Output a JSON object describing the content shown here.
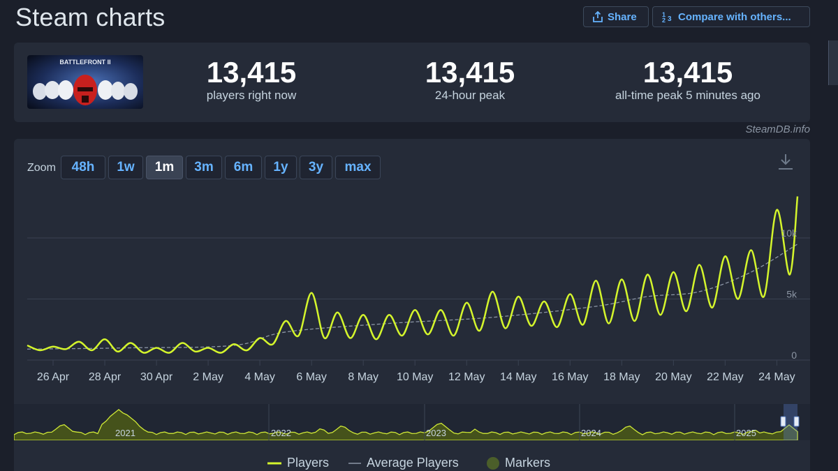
{
  "header": {
    "title": "Steam charts",
    "share_label": "Share",
    "compare_label": "Compare with others..."
  },
  "stats": [
    {
      "value": "13,415",
      "label": "players right now"
    },
    {
      "value": "13,415",
      "label": "24-hour peak"
    },
    {
      "value": "13,415",
      "label": "all-time peak 5 minutes ago"
    }
  ],
  "game": {
    "thumbnail_text": "BATTLEFRONT II"
  },
  "watermark": "SteamDB.info",
  "zoom": {
    "label": "Zoom",
    "options": [
      "48h",
      "1w",
      "1m",
      "3m",
      "6m",
      "1y",
      "3y",
      "max"
    ],
    "active": "1m"
  },
  "colors": {
    "players_line": "#d4f52c",
    "accent_link": "#66b3ff",
    "panel_bg": "#252b38",
    "page_bg": "#1b1f2a"
  },
  "chart_data": {
    "type": "line",
    "x_tick_labels": [
      "26 Apr",
      "28 Apr",
      "30 Apr",
      "2 May",
      "4 May",
      "6 May",
      "8 May",
      "10 May",
      "12 May",
      "14 May",
      "16 May",
      "18 May",
      "20 May",
      "22 May",
      "24 May"
    ],
    "y_tick_labels": [
      "0",
      "5k",
      "10k"
    ],
    "ylim": [
      0,
      14000
    ],
    "grid": true,
    "series": [
      {
        "name": "Players",
        "x_days_from_25apr": [
          0.0,
          0.5,
          1.0,
          1.5,
          2.0,
          2.5,
          3.0,
          3.5,
          4.0,
          4.5,
          5.0,
          5.5,
          6.0,
          6.5,
          7.0,
          7.5,
          8.0,
          8.5,
          9.0,
          9.5,
          10.0,
          10.5,
          11.0,
          11.5,
          12.0,
          12.5,
          13.0,
          13.5,
          14.0,
          14.5,
          15.0,
          15.5,
          16.0,
          16.5,
          17.0,
          17.5,
          18.0,
          18.5,
          19.0,
          19.5,
          20.0,
          20.5,
          21.0,
          21.5,
          22.0,
          22.5,
          23.0,
          23.5,
          24.0,
          24.5,
          25.0,
          25.5,
          26.0,
          26.5,
          27.0,
          27.5,
          28.0,
          28.5,
          29.0,
          29.5,
          29.8
        ],
        "values": [
          1200,
          800,
          1100,
          900,
          1500,
          800,
          1700,
          700,
          1400,
          600,
          1000,
          600,
          1400,
          700,
          1000,
          600,
          1300,
          800,
          1800,
          1300,
          3200,
          2000,
          5500,
          1800,
          3900,
          1800,
          3700,
          1700,
          3700,
          2000,
          4100,
          2100,
          4100,
          2000,
          4700,
          2400,
          5600,
          2600,
          5200,
          2800,
          4800,
          2700,
          5400,
          2900,
          6500,
          3000,
          6600,
          3200,
          7000,
          3700,
          7200,
          4000,
          7800,
          4300,
          8500,
          5000,
          9000,
          5200,
          12300,
          7000,
          13400
        ]
      },
      {
        "name": "Average Players",
        "x_days_from_25apr": [
          0,
          4,
          8,
          10,
          14,
          18,
          22,
          24,
          26,
          28,
          29.8
        ],
        "values": [
          900,
          1000,
          1200,
          2300,
          3000,
          3500,
          4400,
          5200,
          5600,
          7200,
          9500
        ]
      }
    ],
    "navigator": {
      "year_labels": [
        "2021",
        "2022",
        "2023",
        "2024",
        "2025"
      ]
    }
  },
  "legend": {
    "players": "Players",
    "average": "Average Players",
    "markers": "Markers"
  }
}
